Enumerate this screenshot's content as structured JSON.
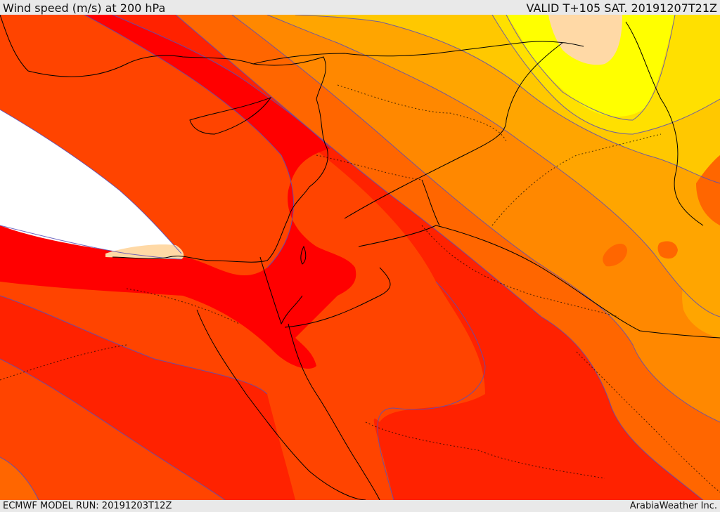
{
  "header": {
    "title": "Wind speed (m/s) at 200 hPa",
    "valid": "VALID T+105 SAT. 20191207T21Z"
  },
  "footer": {
    "model_run": "ECMWF MODEL RUN: 20191203T12Z",
    "credit": "ArabiaWeather Inc."
  },
  "palette": {
    "lowest": "#ffffff",
    "light_band": "#ffd9a6",
    "red": "#ff0000",
    "red_orange": "#ff2200",
    "orange_red": "#ff4400",
    "orange": "#ff6600",
    "dark_orange": "#ff8800",
    "amber": "#ffa500",
    "gold": "#ffc800",
    "yellow": "#ffe000",
    "bright_yellow": "#ffff00",
    "contour": "#5a4fb8",
    "border": "#000000"
  }
}
